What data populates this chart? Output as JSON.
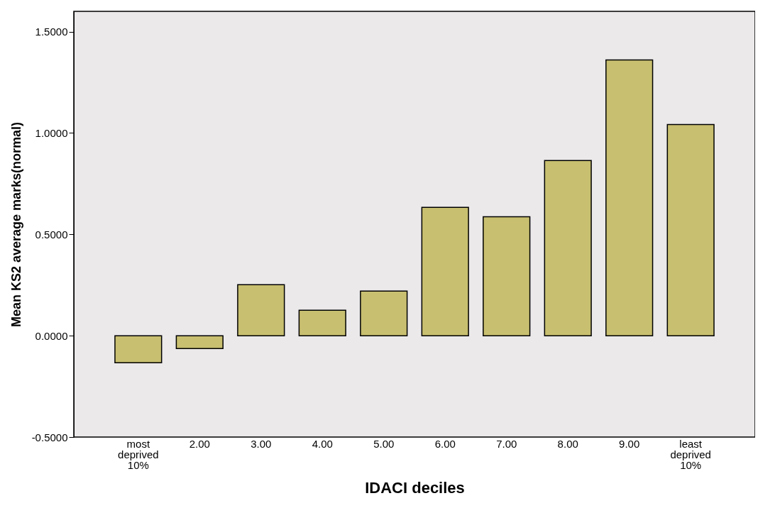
{
  "chart_data": {
    "type": "bar",
    "xlabel": "IDACI deciles",
    "ylabel": "Mean KS2 average marks(normal)",
    "categories": [
      "most\ndeprived\n10%",
      "2.00",
      "3.00",
      "4.00",
      "5.00",
      "6.00",
      "7.00",
      "8.00",
      "9.00",
      "least\ndeprived\n10%"
    ],
    "values": [
      -0.133,
      -0.063,
      0.252,
      0.126,
      0.22,
      0.633,
      0.587,
      0.864,
      1.36,
      1.042
    ],
    "color": "#c8bf70",
    "ylim": [
      -0.5,
      1.6
    ],
    "yticks": [
      {
        "value": -0.5,
        "label": "-0.5000"
      },
      {
        "value": 0,
        "label": "0.0000"
      },
      {
        "value": 0.5,
        "label": "0.5000"
      },
      {
        "value": 1,
        "label": "1.0000"
      },
      {
        "value": 1.5,
        "label": "1.5000"
      }
    ],
    "grid": false
  }
}
